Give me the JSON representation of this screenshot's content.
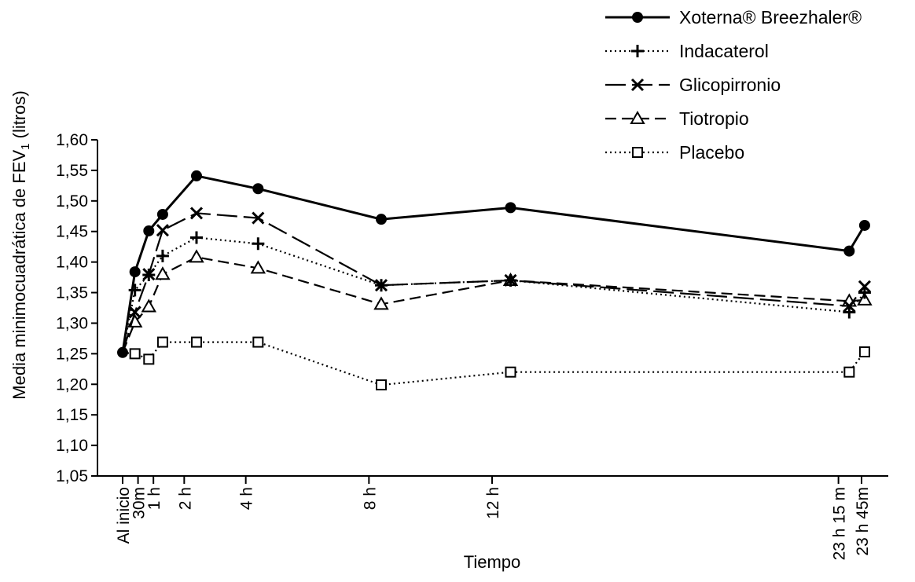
{
  "chart_data": {
    "type": "line",
    "xlabel": "Tiempo",
    "ylabel": "Media minimocuadrática de FEV",
    "ylabel_sub": "1",
    "ylabel_unit": " (litros)",
    "ylim": [
      1.05,
      1.6
    ],
    "yticks": [
      "1,05",
      "1,10",
      "1,15",
      "1,20",
      "1,25",
      "1,30",
      "1,35",
      "1,40",
      "1,45",
      "1,50",
      "1,55",
      "1,60"
    ],
    "x_hours": [
      0,
      0.5,
      1,
      2,
      4,
      8,
      12,
      23.25,
      23.75
    ],
    "categories": [
      "Al inicio",
      "30m",
      "1 h",
      "2 h",
      "4 h",
      "8 h",
      "12 h",
      "23 h 15 m",
      "23 h 45m"
    ],
    "grid": false,
    "legend_position": "top-right",
    "series": [
      {
        "name": "Xoterna® Breezhaler®",
        "style": "solid",
        "marker": "filled-circle",
        "color": "#000000",
        "x": [
          0,
          0.4,
          0.85,
          1.3,
          2.4,
          4.4,
          8.4,
          12.6,
          23.6,
          24.1
        ],
        "values": [
          1.252,
          1.384,
          1.451,
          1.478,
          1.541,
          1.52,
          1.47,
          1.489,
          1.418,
          1.46
        ]
      },
      {
        "name": "Indacaterol",
        "style": "dotted",
        "marker": "plus",
        "color": "#000000",
        "x": [
          0,
          0.4,
          0.85,
          1.3,
          2.4,
          4.4,
          8.4,
          12.6,
          23.6,
          24.1
        ],
        "values": [
          1.252,
          1.354,
          1.379,
          1.41,
          1.44,
          1.43,
          1.362,
          1.37,
          1.318,
          1.35
        ]
      },
      {
        "name": "Glicopirronio",
        "style": "longdash",
        "marker": "cross",
        "color": "#000000",
        "x": [
          0,
          0.4,
          0.85,
          1.3,
          2.4,
          4.4,
          8.4,
          12.6,
          23.6,
          24.1
        ],
        "values": [
          1.252,
          1.318,
          1.38,
          1.452,
          1.48,
          1.472,
          1.362,
          1.37,
          1.328,
          1.36
        ]
      },
      {
        "name": "Tiotropio",
        "style": "dashed",
        "marker": "open-triangle",
        "color": "#000000",
        "x": [
          0,
          0.4,
          0.85,
          1.3,
          2.4,
          4.4,
          8.4,
          12.6,
          23.6,
          24.1
        ],
        "values": [
          1.252,
          1.302,
          1.327,
          1.38,
          1.408,
          1.39,
          1.331,
          1.37,
          1.336,
          1.338
        ]
      },
      {
        "name": "Placebo",
        "style": "dotted",
        "marker": "open-square",
        "color": "#000000",
        "x": [
          0,
          0.4,
          0.85,
          1.3,
          2.4,
          4.4,
          8.4,
          12.6,
          23.6,
          24.1
        ],
        "values": [
          1.252,
          1.25,
          1.241,
          1.269,
          1.269,
          1.269,
          1.199,
          1.22,
          1.22,
          1.253
        ]
      }
    ]
  }
}
